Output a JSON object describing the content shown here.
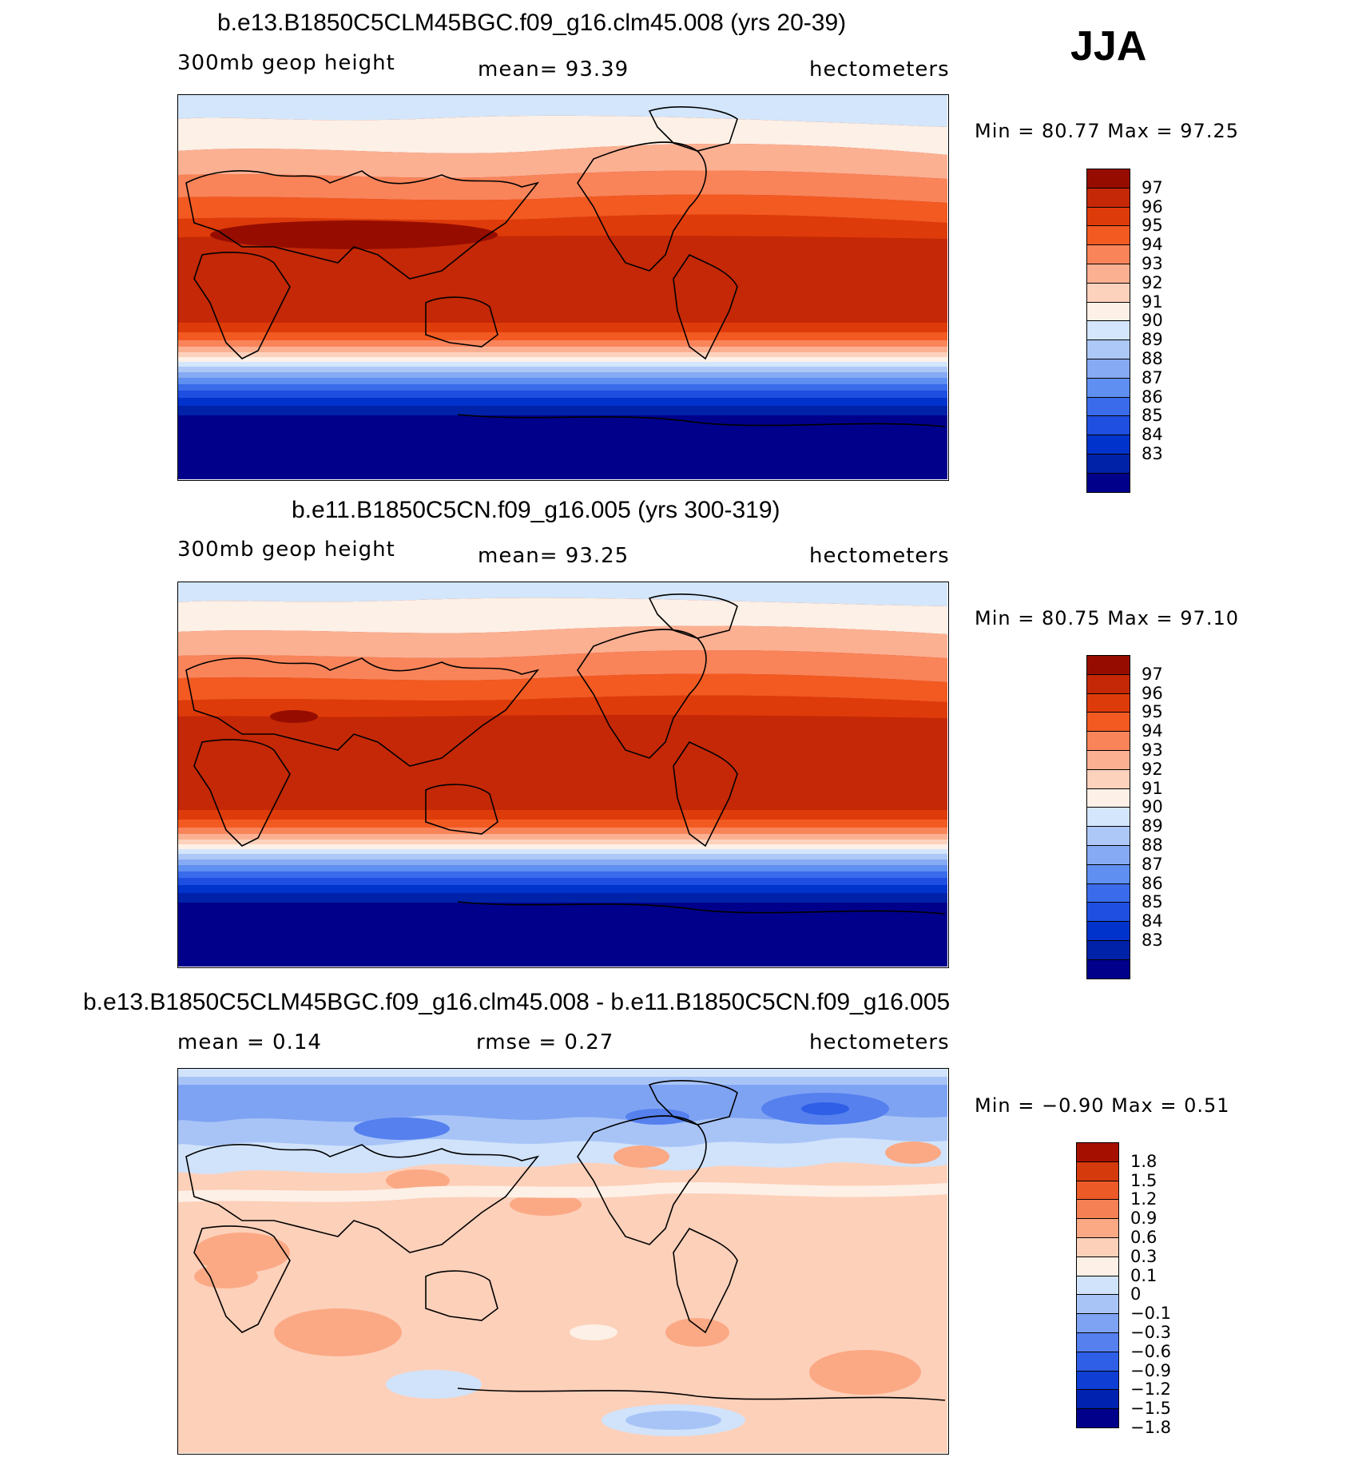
{
  "season": "JJA",
  "colors": {
    "abs": [
      "#00008b",
      "#0022a8",
      "#0033cc",
      "#1f4fe0",
      "#3a6bea",
      "#5f8ff0",
      "#86aaf3",
      "#adc8f7",
      "#d3e6fb",
      "#fdf0e6",
      "#fdd2bc",
      "#fcb092",
      "#f9845a",
      "#f25a22",
      "#de3b0a",
      "#c42806",
      "#960d00"
    ],
    "diff": [
      "#00008b",
      "#0022b0",
      "#0e3ed4",
      "#2e5fe6",
      "#5580ee",
      "#7fa3f3",
      "#a8c4f7",
      "#d0e3fb",
      "#fdf0e6",
      "#fdd0ba",
      "#fba985",
      "#f48054",
      "#ec5a28",
      "#d53a0c",
      "#a50f00"
    ]
  },
  "panels": [
    {
      "title": "b.e13.B1850C5CLM45BGC.f09_g16.clm45.008 (yrs 20-39)",
      "left_label": "300mb  geop  height",
      "center_label": "mean=   93.39",
      "units": "hectometers",
      "minmax": "Min =    80.77  Max =    97.25",
      "colorbar_labels": [
        "97",
        "96",
        "95",
        "94",
        "93",
        "92",
        "91",
        "90",
        "89",
        "88",
        "87",
        "86",
        "85",
        "84",
        "83"
      ]
    },
    {
      "title": "b.e11.B1850C5CN.f09_g16.005 (yrs 300-319)",
      "left_label": "300mb  geop  height",
      "center_label": "mean=   93.25",
      "units": "hectometers",
      "minmax": "Min =    80.75  Max =    97.10",
      "colorbar_labels": [
        "97",
        "96",
        "95",
        "94",
        "93",
        "92",
        "91",
        "90",
        "89",
        "88",
        "87",
        "86",
        "85",
        "84",
        "83"
      ]
    },
    {
      "title": "b.e13.B1850C5CLM45BGC.f09_g16.clm45.008 - b.e11.B1850C5CN.f09_g16.005",
      "left_label": "mean =     0.14",
      "center_label": "rmse =     0.27",
      "units": "hectometers",
      "minmax": "Min =   −0.90  Max =     0.51",
      "colorbar_labels": [
        "1.8",
        "1.5",
        "1.2",
        "0.9",
        "0.6",
        "0.3",
        "0.1",
        "0",
        "−0.1",
        "−0.3",
        "−0.6",
        "−0.9",
        "−1.2",
        "−1.5",
        "−1.8"
      ]
    }
  ]
}
